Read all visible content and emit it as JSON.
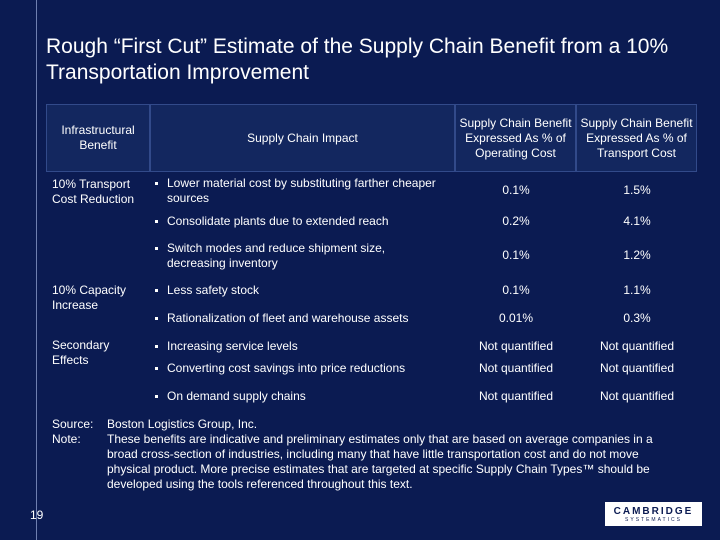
{
  "title": "Rough “First Cut” Estimate of the Supply Chain Benefit from a 10% Transportation Improvement",
  "headers": {
    "infrastructural": "Infrastructural Benefit",
    "impact": "Supply Chain Impact",
    "operating": "Supply Chain Benefit Expressed As % of Operating Cost",
    "transport": "Supply Chain Benefit Expressed As % of Transport Cost"
  },
  "groups": [
    {
      "label": "10% Transport Cost Reduction",
      "rows": [
        {
          "impact": "Lower material cost by substituting farther cheaper sources",
          "operating": "0.1%",
          "transport": "1.5%"
        },
        {
          "impact": "Consolidate plants due to extended reach",
          "operating": "0.2%",
          "transport": "4.1%"
        },
        {
          "impact": "Switch modes and reduce shipment size, decreasing inventory",
          "operating": "0.1%",
          "transport": "1.2%"
        }
      ]
    },
    {
      "label": "10% Capacity Increase",
      "rows": [
        {
          "impact": "Less safety stock",
          "operating": "0.1%",
          "transport": "1.1%"
        },
        {
          "impact": "Rationalization of fleet and warehouse assets",
          "operating": "0.01%",
          "transport": "0.3%"
        }
      ]
    },
    {
      "label": "Secondary Effects",
      "rows": [
        {
          "impact": "Increasing service levels",
          "operating": "Not quantified",
          "transport": "Not quantified"
        },
        {
          "impact": "Converting cost savings into price reductions",
          "operating": "Not quantified",
          "transport": "Not quantified"
        },
        {
          "impact": "On demand supply chains",
          "operating": "Not quantified",
          "transport": "Not quantified"
        }
      ]
    }
  ],
  "source": {
    "label": "Source:",
    "text": "Boston Logistics Group, Inc."
  },
  "note": {
    "label": "Note:",
    "text": "These benefits are indicative and preliminary estimates only that are based on average companies in a broad cross-section of industries, including many that have little transportation cost and do not move physical product. More precise estimates that are targeted at specific Supply Chain Types™ should be developed using the tools referenced throughout this text."
  },
  "page_number": "19",
  "logo": {
    "main": "CAMBRIDGE",
    "sub": "SYSTEMATICS"
  }
}
